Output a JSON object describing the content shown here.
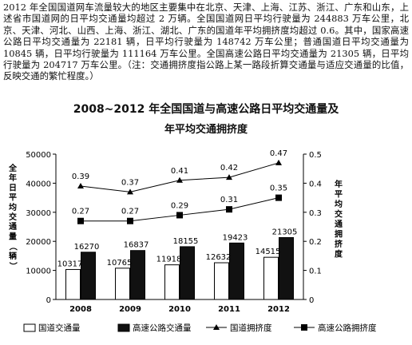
{
  "paragraph": "2012 年全国国道网车流量较大的地区主要集中在北京、天津、上海、江苏、浙江、广东和山东，上述省市国道网的日平均交通量均超过 2 万辆。全国国道网日平均行驶量为 244883 万车公里，北京、天津、河北、山西、上海、浙江、湖北、广东的国道年平均拥挤度均超过 0.6。其中，国家高速公路日平均交通量为 22181 辆，日平均行驶量为 148742 万车公里；普通国道日平均交通量为 10845 辆，日平均行驶量为 111164 万车公里。全国高速公路日平均交通量为 21305 辆，日平均行驶量为 204717 万车公里。（注：交通拥挤度指公路上某一路段折算交通量与适应交通量的比值，反映交通的繁忙程度。）",
  "chart_data": {
    "type": "bar",
    "title_line1": "2008~2012 年全国国道与高速公路日平均交通量及",
    "title_line2": "年平均交通拥挤度",
    "ylabel_left": "全年日平均交通量（辆）",
    "ylabel_right": "年平均交通拥挤度",
    "categories": [
      "2008",
      "2009",
      "2010",
      "2011",
      "2012"
    ],
    "ylim_left": [
      0,
      50000
    ],
    "yticks_left": [
      "0",
      "10000",
      "20000",
      "30000",
      "40000",
      "50000"
    ],
    "ylim_right": [
      0,
      0.5
    ],
    "yticks_right": [
      "0",
      "0.1",
      "0.2",
      "0.3",
      "0.4",
      "0.5"
    ],
    "series": [
      {
        "name": "国道交通量",
        "kind": "bar",
        "color": "#ffffff",
        "values": [
          10317,
          10765,
          11918,
          12632,
          14515
        ]
      },
      {
        "name": "高速公路交通量",
        "kind": "bar",
        "color": "#111111",
        "values": [
          16270,
          16837,
          18155,
          19423,
          21305
        ]
      },
      {
        "name": "国道拥挤度",
        "kind": "line",
        "marker": "triangle",
        "values": [
          0.39,
          0.37,
          0.41,
          0.42,
          0.47
        ]
      },
      {
        "name": "高速公路拥挤度",
        "kind": "line",
        "marker": "square",
        "values": [
          0.27,
          0.27,
          0.29,
          0.31,
          0.35
        ]
      }
    ],
    "legend_position": "bottom"
  }
}
